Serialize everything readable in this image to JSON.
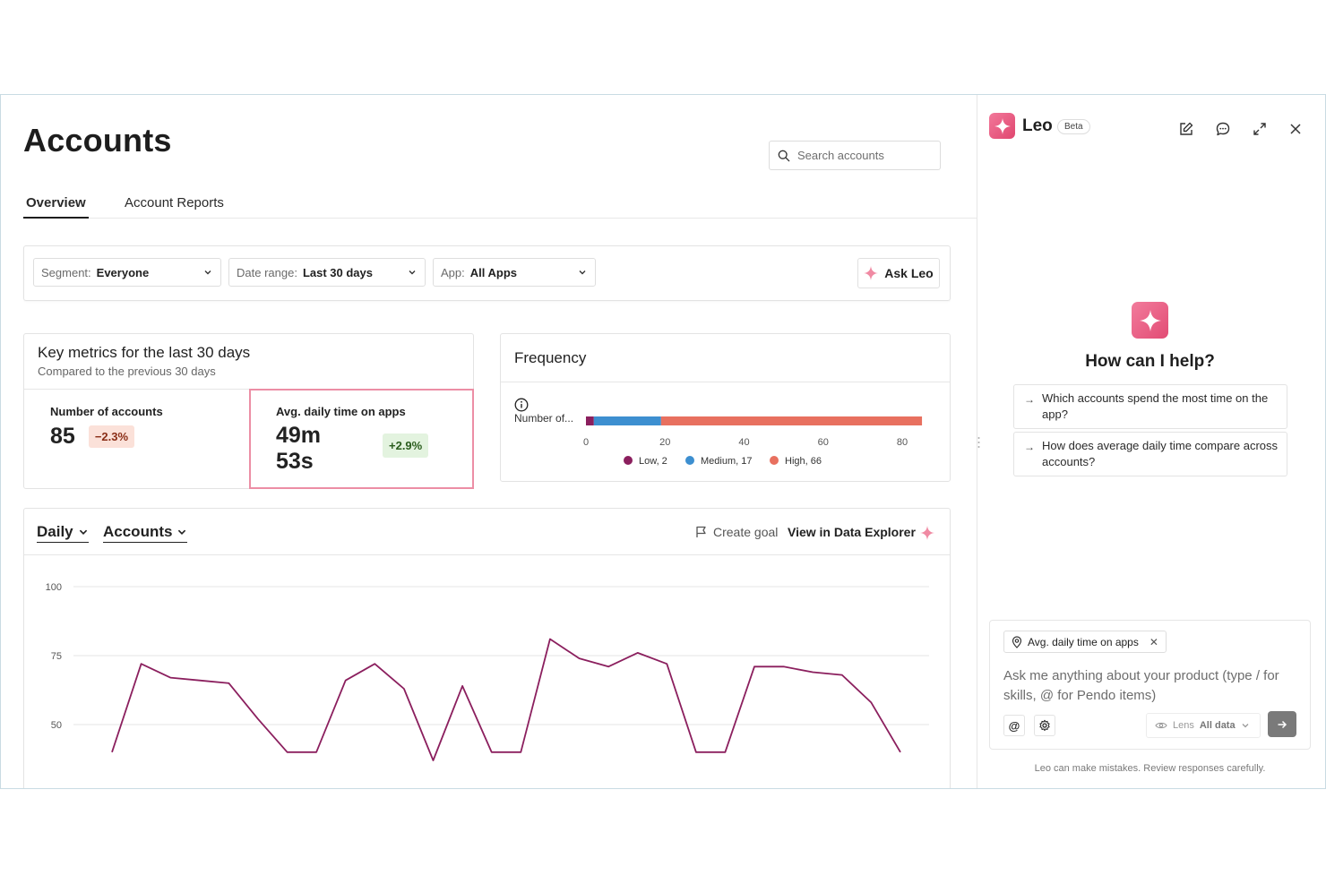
{
  "page": {
    "title": "Accounts"
  },
  "search": {
    "placeholder": "Search accounts"
  },
  "tabs": [
    {
      "label": "Overview",
      "active": true
    },
    {
      "label": "Account Reports",
      "active": false
    }
  ],
  "filters": {
    "segment": {
      "label": "Segment:",
      "value": "Everyone"
    },
    "date_range": {
      "label": "Date range:",
      "value": "Last 30 days"
    },
    "app": {
      "label": "App:",
      "value": "All Apps"
    },
    "ask_leo": "Ask Leo"
  },
  "key_metrics": {
    "title": "Key metrics for the last 30 days",
    "subtitle": "Compared to the previous 30 days",
    "accounts": {
      "label": "Number of accounts",
      "value": "85",
      "change": "−2.3%"
    },
    "daily_time": {
      "label": "Avg. daily time on apps",
      "value_line1": "49m",
      "value_line2": "53s",
      "change": "+2.9%"
    }
  },
  "frequency": {
    "title": "Frequency",
    "chart_data": {
      "type": "bar",
      "orientation": "horizontal-stacked",
      "categories": [
        "Number of..."
      ],
      "series": [
        {
          "name": "Low",
          "values": [
            2
          ],
          "color": "#8b1f5e"
        },
        {
          "name": "Medium",
          "values": [
            17
          ],
          "color": "#3d8fd0"
        },
        {
          "name": "High",
          "values": [
            66
          ],
          "color": "#e8705f"
        }
      ],
      "xticks": [
        0,
        20,
        40,
        60,
        80
      ],
      "legend": [
        "Low, 2",
        "Medium, 17",
        "High, 66"
      ],
      "legend_position": "bottom"
    }
  },
  "trend": {
    "period": "Daily",
    "entity": "Accounts",
    "create_goal": "Create goal",
    "view_explorer": "View in Data Explorer",
    "chart_data": {
      "type": "line",
      "yticks": [
        100,
        75,
        50
      ],
      "ylim_visible": [
        40,
        100
      ],
      "grid": true,
      "series": [
        {
          "color": "#8b1f5e",
          "values": [
            40,
            72,
            67,
            66,
            65,
            52,
            40,
            40,
            66,
            72,
            63,
            37,
            64,
            40,
            40,
            81,
            74,
            71,
            76,
            72,
            40,
            40,
            71,
            71,
            69,
            68,
            58,
            40
          ]
        }
      ]
    }
  },
  "leo": {
    "name": "Leo",
    "badge": "Beta",
    "help_title": "How can I help?",
    "suggestions": [
      "Which accounts spend the most time on the app?",
      "How does average daily time compare across accounts?"
    ],
    "context_chip": "Avg. daily time on apps",
    "prompt_placeholder": "Ask me anything about your product (type / for skills, @ for Pendo items)",
    "at_symbol": "@",
    "lens_label": "Lens",
    "lens_value": "All data",
    "disclaimer": "Leo can make mistakes. Review responses carefully."
  },
  "colors": {
    "accent": "#e24b74",
    "line": "#8b1f5e"
  }
}
